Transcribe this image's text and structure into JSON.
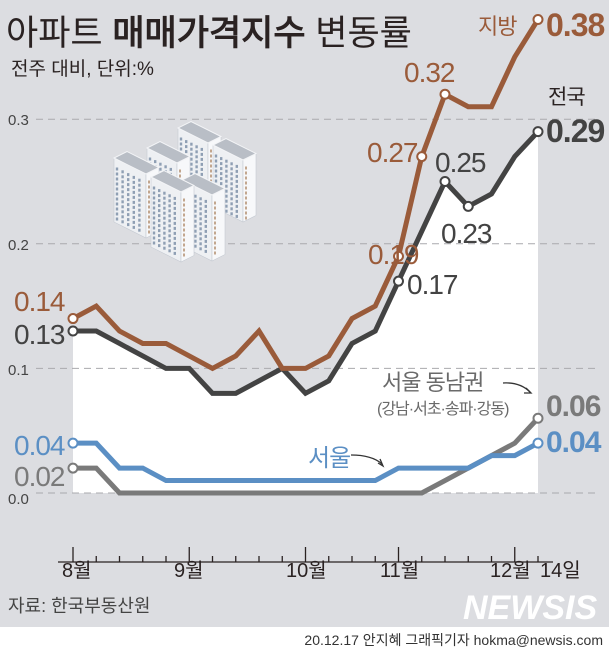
{
  "title": {
    "part1": "아파트",
    "bold": "매매가격지수",
    "part3": "변동률"
  },
  "subtitle": "전주 대비, 단위:%",
  "source": "자료: 한국부동산원",
  "watermark": "NEWSIS",
  "credit": "20.12.17 안지혜 그래픽기자 hokma@newsis.com",
  "colors": {
    "background": "#dcdde1",
    "jibang": "#9a5b3a",
    "jeonguk": "#434343",
    "gangnam": "#7a7a7a",
    "seoul": "#5b8fc4"
  },
  "annotations": {
    "jibang_name": "지방",
    "jeonguk_name": "전국",
    "gangnam_name": "서울 동남권",
    "gangnam_sub": "(강남·서초·송파·강동)",
    "seoul_name": "서울",
    "jibang_start": "0.14",
    "jibang_019": "0.19",
    "jibang_027": "0.27",
    "jibang_032": "0.32",
    "jibang_end": "0.38",
    "jeonguk_start": "0.13",
    "jeonguk_017": "0.17",
    "jeonguk_025": "0.25",
    "jeonguk_023": "0.23",
    "jeonguk_end": "0.29",
    "seoul_start": "0.04",
    "seoul_end": "0.04",
    "gangnam_start": "0.02",
    "gangnam_end": "0.06"
  },
  "chart_data": {
    "type": "line",
    "title": "아파트 매매가격지수 변동률",
    "subtitle": "전주 대비, 단위:%",
    "x_tick_labels": [
      "8월",
      "9월",
      "10월",
      "11월",
      "12월",
      "14일"
    ],
    "ylim": [
      0,
      0.3
    ],
    "y_ticks": [
      "0.0",
      "0.1",
      "0.2",
      "0.3"
    ],
    "grid": true,
    "series": [
      {
        "name": "지방",
        "color": "#9a5b3a",
        "values": [
          0.14,
          0.15,
          0.13,
          0.12,
          0.12,
          0.11,
          0.1,
          0.11,
          0.13,
          0.1,
          0.1,
          0.11,
          0.14,
          0.15,
          0.19,
          0.27,
          0.32,
          0.31,
          0.31,
          0.35,
          0.38
        ]
      },
      {
        "name": "전국",
        "color": "#434343",
        "values": [
          0.13,
          0.13,
          0.12,
          0.11,
          0.1,
          0.1,
          0.08,
          0.08,
          0.09,
          0.1,
          0.08,
          0.09,
          0.12,
          0.13,
          0.17,
          0.21,
          0.25,
          0.23,
          0.24,
          0.27,
          0.29
        ]
      },
      {
        "name": "서울 동남권",
        "color": "#7a7a7a",
        "values": [
          0.02,
          0.02,
          0.0,
          0.0,
          0.0,
          0.0,
          0.0,
          0.0,
          0.0,
          0.0,
          0.0,
          0.0,
          0.0,
          0.0,
          0.0,
          0.0,
          0.01,
          0.02,
          0.03,
          0.04,
          0.06
        ]
      },
      {
        "name": "서울",
        "color": "#5b8fc4",
        "values": [
          0.04,
          0.04,
          0.02,
          0.02,
          0.01,
          0.01,
          0.01,
          0.01,
          0.01,
          0.01,
          0.01,
          0.01,
          0.01,
          0.01,
          0.02,
          0.02,
          0.02,
          0.02,
          0.03,
          0.03,
          0.04
        ]
      }
    ]
  }
}
